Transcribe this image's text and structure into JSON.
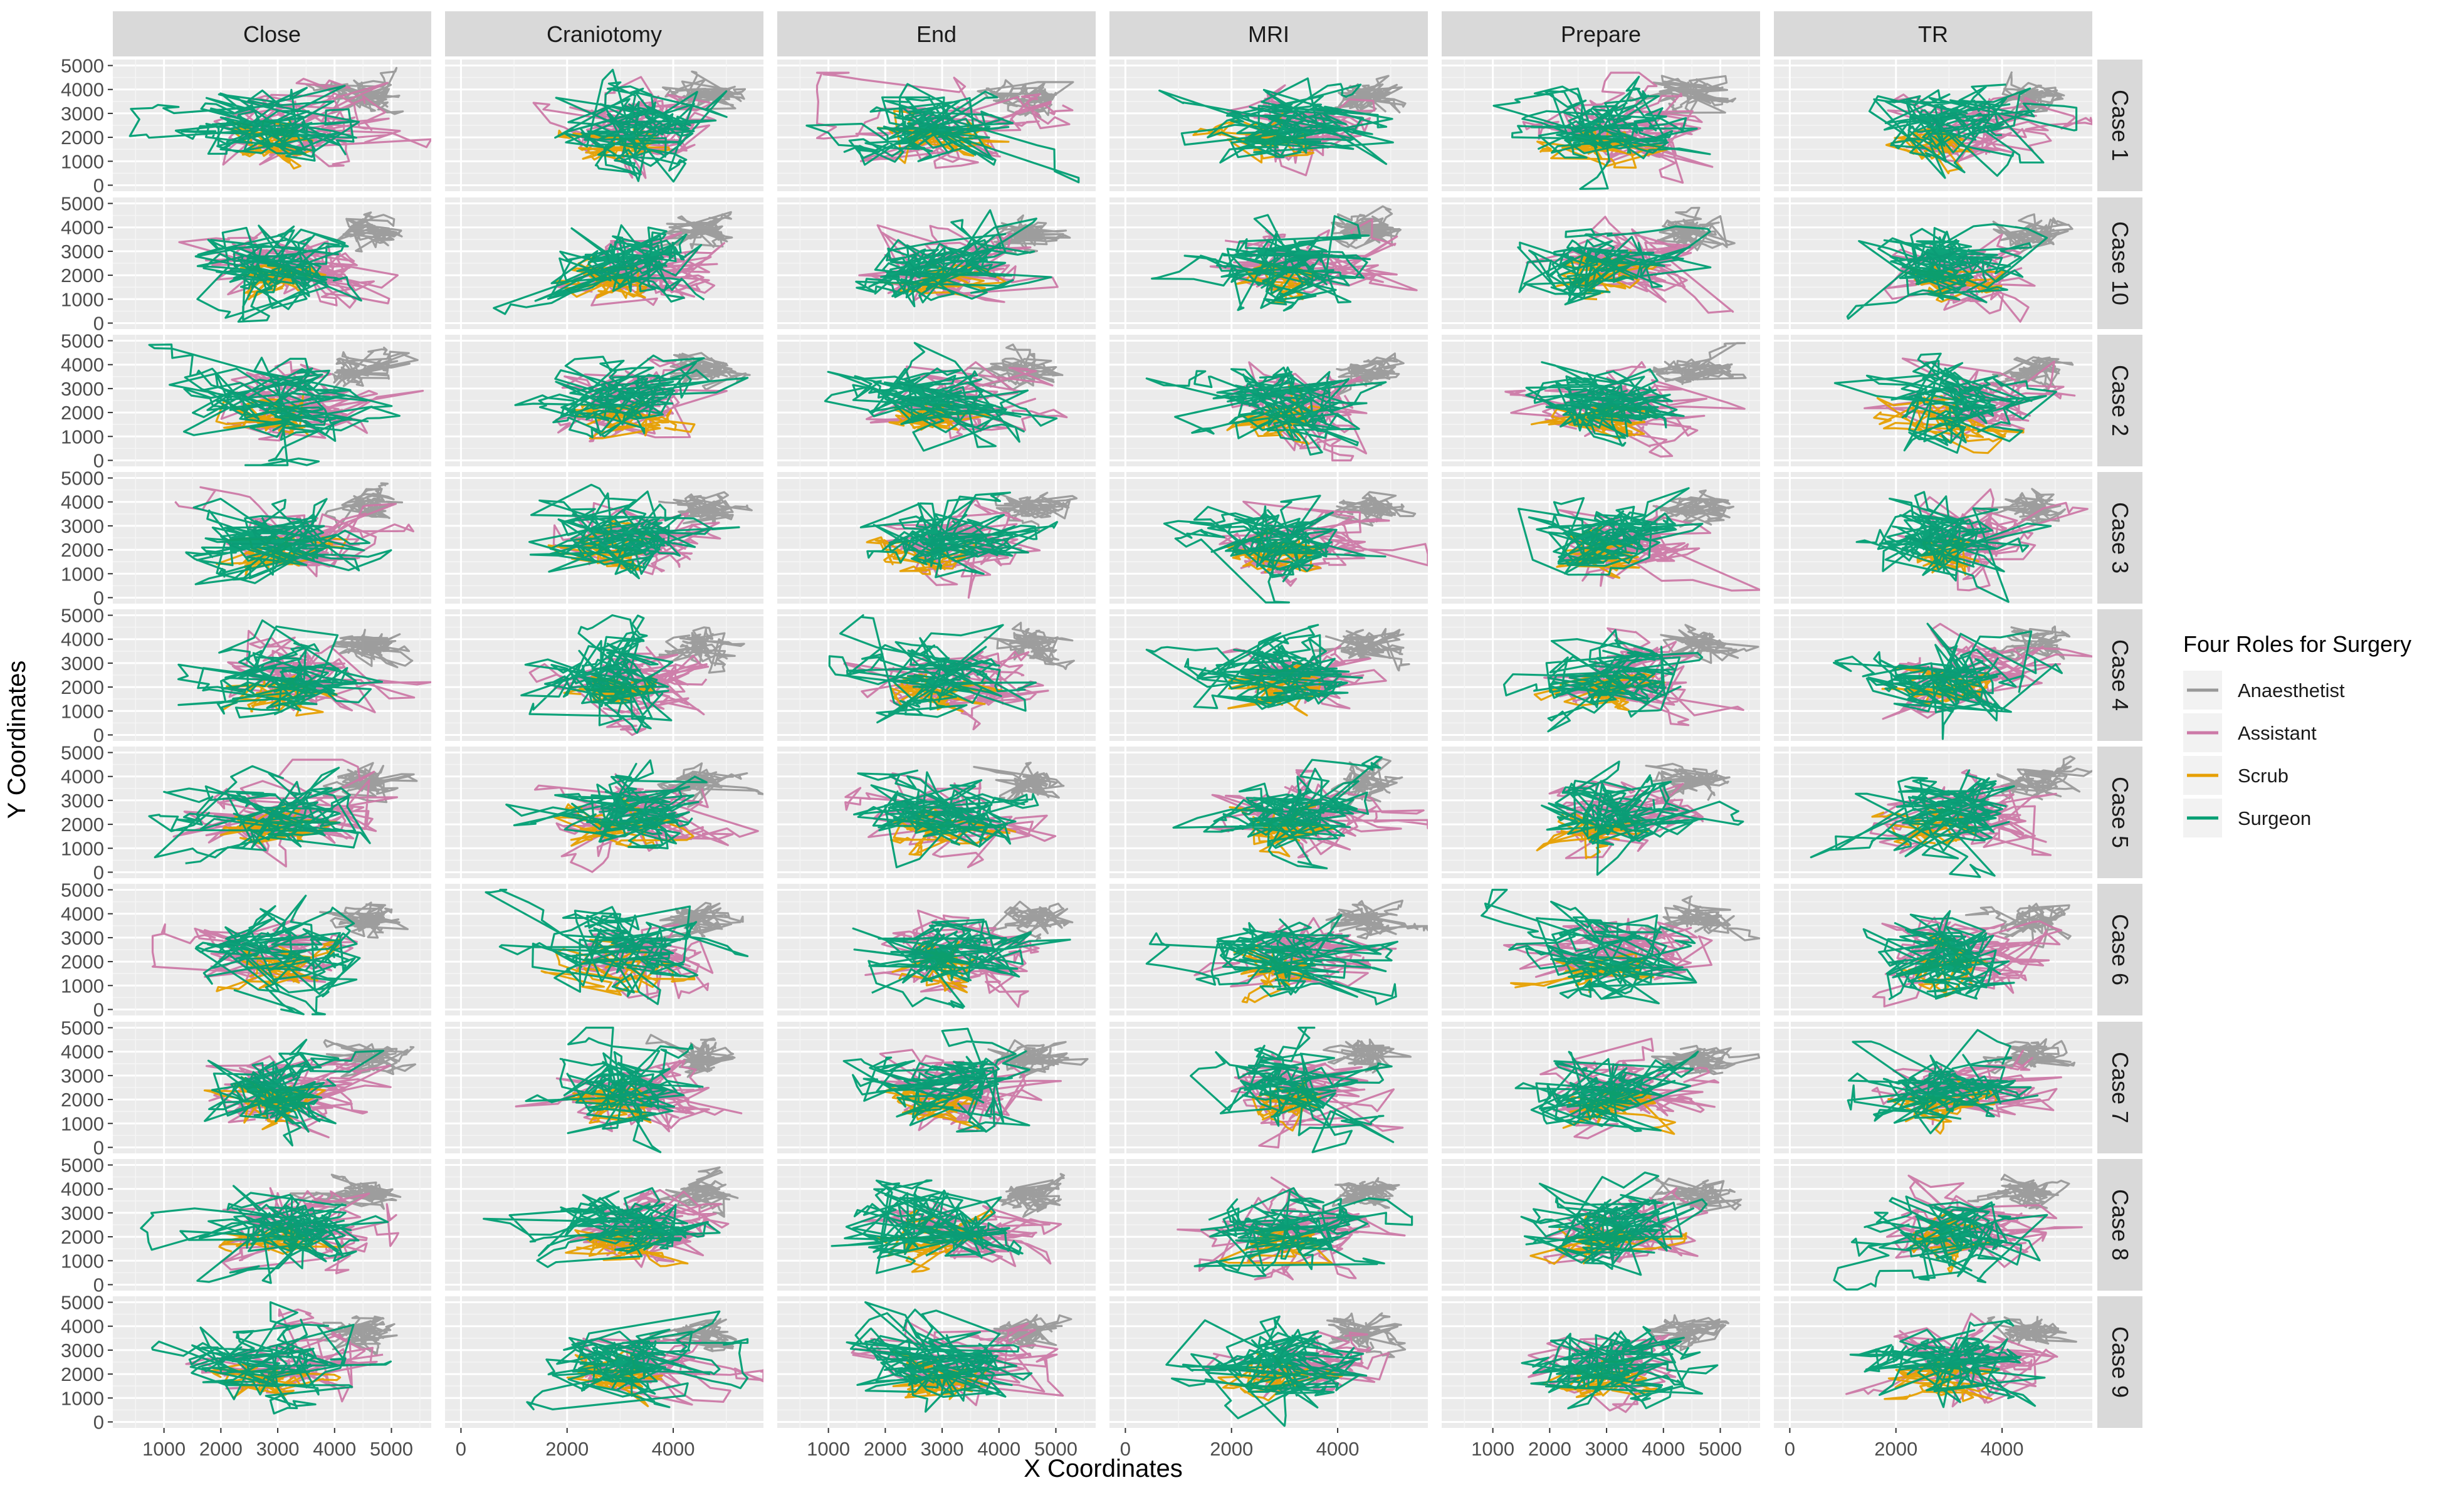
{
  "chart_data": {
    "type": "line",
    "subtype": "faceted path plot (facet_grid)",
    "xlabel": "X Coordinates",
    "ylabel": "Y Coordinates",
    "column_facets": [
      "Close",
      "Craniotomy",
      "End",
      "MRI",
      "Prepare",
      "TR"
    ],
    "row_facets": [
      "Case 1",
      "Case 10",
      "Case 2",
      "Case 3",
      "Case 4",
      "Case 5",
      "Case 6",
      "Case 7",
      "Case 8",
      "Case 9"
    ],
    "y_ticks": [
      0,
      1000,
      2000,
      3000,
      4000,
      5000
    ],
    "ylim": [
      -250,
      5250
    ],
    "x_scales": [
      {
        "facet": "Close",
        "ticks": [
          1000,
          2000,
          3000,
          4000,
          5000
        ],
        "xlim": [
          100,
          5700
        ]
      },
      {
        "facet": "Craniotomy",
        "ticks": [
          0,
          2000,
          4000
        ],
        "xlim": [
          -300,
          5700
        ]
      },
      {
        "facet": "End",
        "ticks": [
          1000,
          2000,
          3000,
          4000,
          5000
        ],
        "xlim": [
          100,
          5700
        ]
      },
      {
        "facet": "MRI",
        "ticks": [
          0,
          2000,
          4000
        ],
        "xlim": [
          -300,
          5700
        ]
      },
      {
        "facet": "Prepare",
        "ticks": [
          1000,
          2000,
          3000,
          4000,
          5000
        ],
        "xlim": [
          100,
          5700
        ]
      },
      {
        "facet": "TR",
        "ticks": [
          0,
          2000,
          4000
        ],
        "xlim": [
          -300,
          5700
        ]
      }
    ],
    "legend": {
      "title": "Four Roles for Surgery",
      "position": "right",
      "entries": [
        {
          "name": "Anaesthetist",
          "color": "#999999"
        },
        {
          "name": "Assistant",
          "color": "#CC79A7"
        },
        {
          "name": "Scrub",
          "color": "#E69F00"
        },
        {
          "name": "Surgeon",
          "color": "#009E73"
        }
      ]
    },
    "series": [
      {
        "name": "Anaesthetist",
        "color": "#999999",
        "typical_region": {
          "x_range": [
            3600,
            5500
          ],
          "y_range": [
            2800,
            4700
          ]
        }
      },
      {
        "name": "Assistant",
        "color": "#CC79A7",
        "typical_region": {
          "x_range": [
            1200,
            5500
          ],
          "y_range": [
            200,
            4500
          ]
        }
      },
      {
        "name": "Scrub",
        "color": "#E69F00",
        "typical_region": {
          "x_range": [
            1500,
            4200
          ],
          "y_range": [
            500,
            3000
          ]
        }
      },
      {
        "name": "Surgeon",
        "color": "#009E73",
        "typical_region": {
          "x_range": [
            800,
            5200
          ],
          "y_range": [
            0,
            4800
          ]
        }
      }
    ],
    "grid": true,
    "panel_background": "#EBEBEB",
    "strip_background": "#D9D9D9"
  }
}
